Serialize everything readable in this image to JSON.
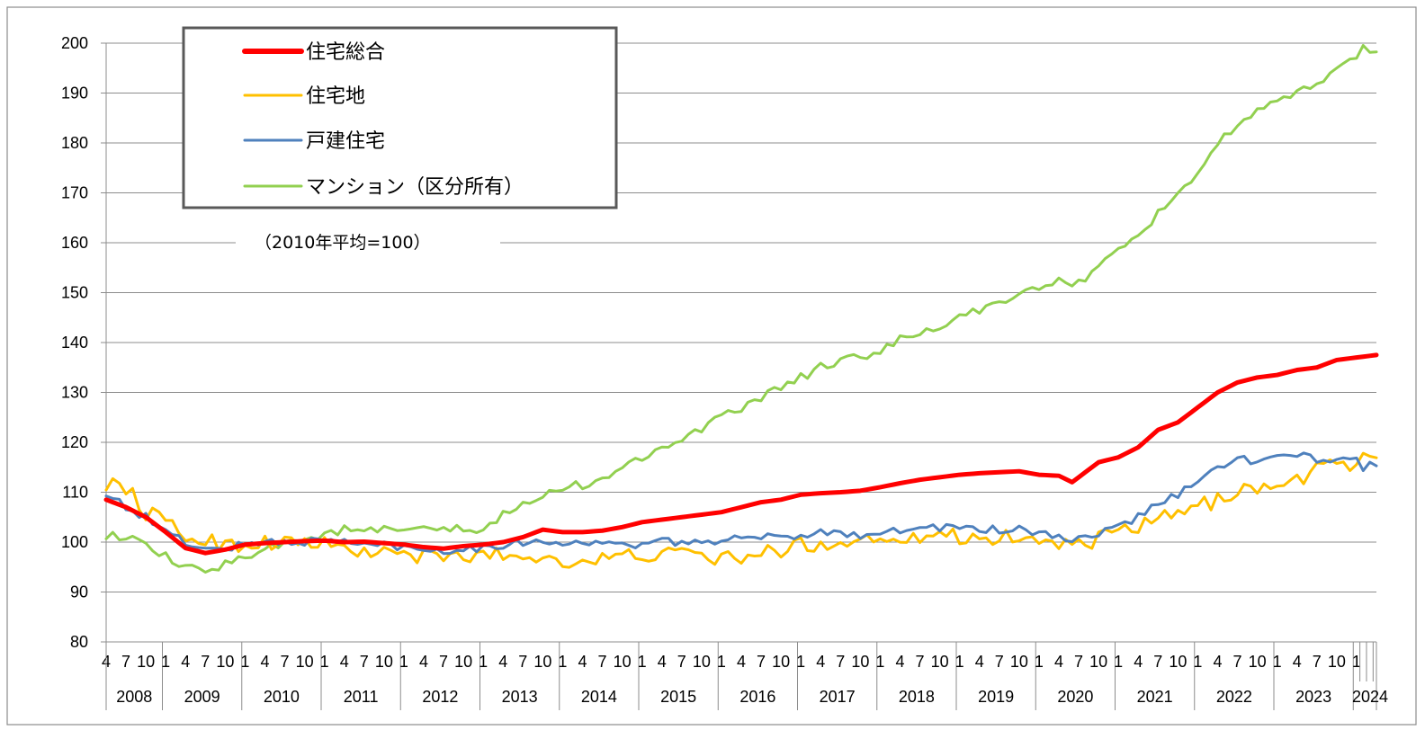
{
  "chart_data": {
    "type": "line",
    "title": "",
    "xlabel": "",
    "ylabel": "",
    "note": "（2010年平均=100）",
    "ylim": [
      80,
      200
    ],
    "yticks": [
      80,
      90,
      100,
      110,
      120,
      130,
      140,
      150,
      160,
      170,
      180,
      190,
      200
    ],
    "grid": "horizontal",
    "legend_position": "top-left",
    "years": [
      "2008",
      "2009",
      "2010",
      "2011",
      "2012",
      "2013",
      "2014",
      "2015",
      "2016",
      "2017",
      "2018",
      "2019",
      "2020",
      "2021",
      "2022",
      "2023",
      "2024"
    ],
    "month_ticks": [
      "1",
      "4",
      "7",
      "10"
    ],
    "first_year_month_ticks": [
      "4",
      "7",
      "10"
    ],
    "last_year_month_ticks": [
      "1"
    ],
    "start": "2008-04",
    "end": "2024-04",
    "series": [
      {
        "name": "住宅総合",
        "color": "#ff0000",
        "keypoints": [
          [
            "2008-04",
            108.5
          ],
          [
            "2008-07",
            107
          ],
          [
            "2008-10",
            105
          ],
          [
            "2009-01",
            102
          ],
          [
            "2009-04",
            98.8
          ],
          [
            "2009-07",
            97.8
          ],
          [
            "2009-10",
            98.5
          ],
          [
            "2010-01",
            99.5
          ],
          [
            "2010-04",
            99.8
          ],
          [
            "2010-07",
            100
          ],
          [
            "2010-10",
            100.2
          ],
          [
            "2011-01",
            100.3
          ],
          [
            "2011-04",
            100
          ],
          [
            "2011-07",
            100.1
          ],
          [
            "2011-10",
            99.8
          ],
          [
            "2012-01",
            99.5
          ],
          [
            "2012-04",
            99
          ],
          [
            "2012-07",
            98.7
          ],
          [
            "2012-10",
            99.2
          ],
          [
            "2013-01",
            99.5
          ],
          [
            "2013-04",
            100
          ],
          [
            "2013-07",
            101
          ],
          [
            "2013-10",
            102.5
          ],
          [
            "2014-01",
            102
          ],
          [
            "2014-04",
            102
          ],
          [
            "2014-07",
            102.3
          ],
          [
            "2014-10",
            103
          ],
          [
            "2015-01",
            104
          ],
          [
            "2015-04",
            104.5
          ],
          [
            "2015-07",
            105
          ],
          [
            "2015-10",
            105.5
          ],
          [
            "2016-01",
            106
          ],
          [
            "2016-04",
            107
          ],
          [
            "2016-07",
            108
          ],
          [
            "2016-10",
            108.5
          ],
          [
            "2017-01",
            109.5
          ],
          [
            "2017-04",
            109.8
          ],
          [
            "2017-07",
            110
          ],
          [
            "2017-10",
            110.3
          ],
          [
            "2018-01",
            111
          ],
          [
            "2018-04",
            111.8
          ],
          [
            "2018-07",
            112.5
          ],
          [
            "2018-10",
            113
          ],
          [
            "2019-01",
            113.5
          ],
          [
            "2019-04",
            113.8
          ],
          [
            "2019-07",
            114
          ],
          [
            "2019-10",
            114.2
          ],
          [
            "2020-01",
            113.5
          ],
          [
            "2020-04",
            113.3
          ],
          [
            "2020-06",
            112
          ],
          [
            "2020-10",
            116
          ],
          [
            "2021-01",
            117
          ],
          [
            "2021-04",
            119
          ],
          [
            "2021-07",
            122.5
          ],
          [
            "2021-10",
            124
          ],
          [
            "2022-01",
            127
          ],
          [
            "2022-04",
            130
          ],
          [
            "2022-07",
            132
          ],
          [
            "2022-10",
            133
          ],
          [
            "2023-01",
            133.5
          ],
          [
            "2023-04",
            134.5
          ],
          [
            "2023-07",
            135
          ],
          [
            "2023-10",
            136.5
          ],
          [
            "2024-01",
            137
          ],
          [
            "2024-04",
            137.5
          ]
        ]
      },
      {
        "name": "住宅地",
        "color": "#ffc000",
        "keypoints": [
          [
            "2008-04",
            112
          ],
          [
            "2008-07",
            111
          ],
          [
            "2008-10",
            106
          ],
          [
            "2009-01",
            104
          ],
          [
            "2009-04",
            101
          ],
          [
            "2009-07",
            100.5
          ],
          [
            "2009-10",
            99.5
          ],
          [
            "2010-01",
            99.5
          ],
          [
            "2010-04",
            100
          ],
          [
            "2010-07",
            100
          ],
          [
            "2010-10",
            100
          ],
          [
            "2011-01",
            99.5
          ],
          [
            "2011-04",
            98.5
          ],
          [
            "2011-07",
            98
          ],
          [
            "2011-10",
            98
          ],
          [
            "2012-01",
            97.5
          ],
          [
            "2012-04",
            97
          ],
          [
            "2012-07",
            97
          ],
          [
            "2012-10",
            97
          ],
          [
            "2013-01",
            97.5
          ],
          [
            "2013-04",
            97.5
          ],
          [
            "2013-07",
            97
          ],
          [
            "2013-10",
            97
          ],
          [
            "2014-01",
            96.5
          ],
          [
            "2014-04",
            96
          ],
          [
            "2014-07",
            96.5
          ],
          [
            "2014-10",
            97
          ],
          [
            "2015-01",
            97.5
          ],
          [
            "2015-04",
            97.5
          ],
          [
            "2015-07",
            97.5
          ],
          [
            "2015-10",
            97.5
          ],
          [
            "2016-01",
            96.5
          ],
          [
            "2016-04",
            97
          ],
          [
            "2016-07",
            97.5
          ],
          [
            "2016-10",
            98.5
          ],
          [
            "2017-01",
            99.5
          ],
          [
            "2017-04",
            99.5
          ],
          [
            "2017-07",
            100
          ],
          [
            "2017-10",
            100.5
          ],
          [
            "2018-01",
            101
          ],
          [
            "2018-04",
            101
          ],
          [
            "2018-07",
            101.5
          ],
          [
            "2018-10",
            101.5
          ],
          [
            "2019-01",
            101
          ],
          [
            "2019-04",
            101
          ],
          [
            "2019-07",
            101
          ],
          [
            "2019-10",
            101
          ],
          [
            "2020-01",
            100
          ],
          [
            "2020-04",
            100
          ],
          [
            "2020-07",
            99
          ],
          [
            "2020-10",
            100.5
          ],
          [
            "2021-01",
            102
          ],
          [
            "2021-04",
            103
          ],
          [
            "2021-07",
            104.5
          ],
          [
            "2021-10",
            105.5
          ],
          [
            "2022-01",
            107
          ],
          [
            "2022-04",
            108.5
          ],
          [
            "2022-07",
            110.5
          ],
          [
            "2022-10",
            111
          ],
          [
            "2023-01",
            110.5
          ],
          [
            "2023-04",
            112.5
          ],
          [
            "2023-07",
            114.5
          ],
          [
            "2023-10",
            115.5
          ],
          [
            "2024-01",
            116
          ],
          [
            "2024-04",
            117
          ]
        ],
        "noise": 1.6
      },
      {
        "name": "戸建住宅",
        "color": "#4f81bd",
        "keypoints": [
          [
            "2008-04",
            110
          ],
          [
            "2008-07",
            107
          ],
          [
            "2008-10",
            105
          ],
          [
            "2009-01",
            102
          ],
          [
            "2009-04",
            100
          ],
          [
            "2009-07",
            98.5
          ],
          [
            "2009-10",
            98.8
          ],
          [
            "2010-01",
            99.5
          ],
          [
            "2010-04",
            100
          ],
          [
            "2010-07",
            100
          ],
          [
            "2010-10",
            100
          ],
          [
            "2011-01",
            100.5
          ],
          [
            "2011-04",
            100
          ],
          [
            "2011-07",
            99.5
          ],
          [
            "2011-10",
            99.5
          ],
          [
            "2012-01",
            99
          ],
          [
            "2012-04",
            98.5
          ],
          [
            "2012-07",
            98.5
          ],
          [
            "2012-10",
            98.5
          ],
          [
            "2013-01",
            99
          ],
          [
            "2013-04",
            99.5
          ],
          [
            "2013-07",
            100
          ],
          [
            "2013-10",
            100
          ],
          [
            "2014-01",
            100
          ],
          [
            "2014-04",
            100
          ],
          [
            "2014-07",
            99.5
          ],
          [
            "2014-10",
            99.5
          ],
          [
            "2015-01",
            99.5
          ],
          [
            "2015-04",
            100
          ],
          [
            "2015-07",
            100
          ],
          [
            "2015-10",
            100
          ],
          [
            "2016-01",
            100.5
          ],
          [
            "2016-04",
            100.5
          ],
          [
            "2016-07",
            101
          ],
          [
            "2016-10",
            101
          ],
          [
            "2017-01",
            101.5
          ],
          [
            "2017-04",
            102
          ],
          [
            "2017-07",
            102
          ],
          [
            "2017-10",
            101.5
          ],
          [
            "2018-01",
            102
          ],
          [
            "2018-04",
            102.5
          ],
          [
            "2018-07",
            102.5
          ],
          [
            "2018-10",
            103
          ],
          [
            "2019-01",
            103
          ],
          [
            "2019-04",
            102.5
          ],
          [
            "2019-07",
            102.5
          ],
          [
            "2019-10",
            102.5
          ],
          [
            "2020-01",
            101.5
          ],
          [
            "2020-04",
            101
          ],
          [
            "2020-07",
            100.5
          ],
          [
            "2020-10",
            101.5
          ],
          [
            "2021-01",
            103
          ],
          [
            "2021-04",
            105
          ],
          [
            "2021-07",
            108
          ],
          [
            "2021-10",
            109.5
          ],
          [
            "2022-01",
            112
          ],
          [
            "2022-04",
            115
          ],
          [
            "2022-07",
            117
          ],
          [
            "2022-10",
            116
          ],
          [
            "2023-01",
            117
          ],
          [
            "2023-04",
            117.5
          ],
          [
            "2023-07",
            116.5
          ],
          [
            "2023-10",
            116.5
          ],
          [
            "2024-01",
            117
          ],
          [
            "2024-02",
            114.5
          ],
          [
            "2024-04",
            116
          ]
        ],
        "noise": 0.8
      },
      {
        "name": "マンション（区分所有）",
        "color": "#92d050",
        "keypoints": [
          [
            "2008-04",
            101.5
          ],
          [
            "2008-07",
            101
          ],
          [
            "2008-10",
            99
          ],
          [
            "2009-01",
            97
          ],
          [
            "2009-04",
            94.5
          ],
          [
            "2009-07",
            94.5
          ],
          [
            "2009-10",
            95.5
          ],
          [
            "2010-01",
            97
          ],
          [
            "2010-04",
            99
          ],
          [
            "2010-07",
            100
          ],
          [
            "2010-10",
            100.5
          ],
          [
            "2011-01",
            101.5
          ],
          [
            "2011-04",
            102.5
          ],
          [
            "2011-07",
            102
          ],
          [
            "2011-10",
            102.5
          ],
          [
            "2012-01",
            102
          ],
          [
            "2012-04",
            102.5
          ],
          [
            "2012-07",
            102.5
          ],
          [
            "2012-10",
            102.5
          ],
          [
            "2013-01",
            102
          ],
          [
            "2013-04",
            105.5
          ],
          [
            "2013-07",
            107.5
          ],
          [
            "2013-10",
            109
          ],
          [
            "2014-01",
            111
          ],
          [
            "2014-04",
            111.5
          ],
          [
            "2014-07",
            113
          ],
          [
            "2014-10",
            114.5
          ],
          [
            "2015-01",
            117
          ],
          [
            "2015-04",
            119.5
          ],
          [
            "2015-07",
            120.5
          ],
          [
            "2015-10",
            122.5
          ],
          [
            "2016-01",
            125
          ],
          [
            "2016-04",
            126.5
          ],
          [
            "2016-07",
            129
          ],
          [
            "2016-10",
            131
          ],
          [
            "2017-01",
            133
          ],
          [
            "2017-04",
            135
          ],
          [
            "2017-07",
            136.5
          ],
          [
            "2017-10",
            137
          ],
          [
            "2018-01",
            138.5
          ],
          [
            "2018-04",
            140.5
          ],
          [
            "2018-07",
            141.5
          ],
          [
            "2018-10",
            143
          ],
          [
            "2019-01",
            145.5
          ],
          [
            "2019-04",
            146.5
          ],
          [
            "2019-07",
            147.5
          ],
          [
            "2019-10",
            149.5
          ],
          [
            "2020-01",
            151
          ],
          [
            "2020-04",
            153
          ],
          [
            "2020-06",
            151
          ],
          [
            "2020-10",
            155
          ],
          [
            "2021-01",
            158
          ],
          [
            "2021-04",
            161
          ],
          [
            "2021-07",
            166
          ],
          [
            "2021-10",
            170
          ],
          [
            "2022-01",
            174
          ],
          [
            "2022-04",
            180
          ],
          [
            "2022-07",
            183
          ],
          [
            "2022-10",
            186
          ],
          [
            "2023-01",
            188
          ],
          [
            "2023-04",
            190
          ],
          [
            "2023-07",
            192
          ],
          [
            "2023-10",
            195
          ],
          [
            "2024-01",
            197
          ],
          [
            "2024-02",
            199
          ],
          [
            "2024-04",
            198
          ]
        ],
        "noise": 0.9
      }
    ]
  }
}
